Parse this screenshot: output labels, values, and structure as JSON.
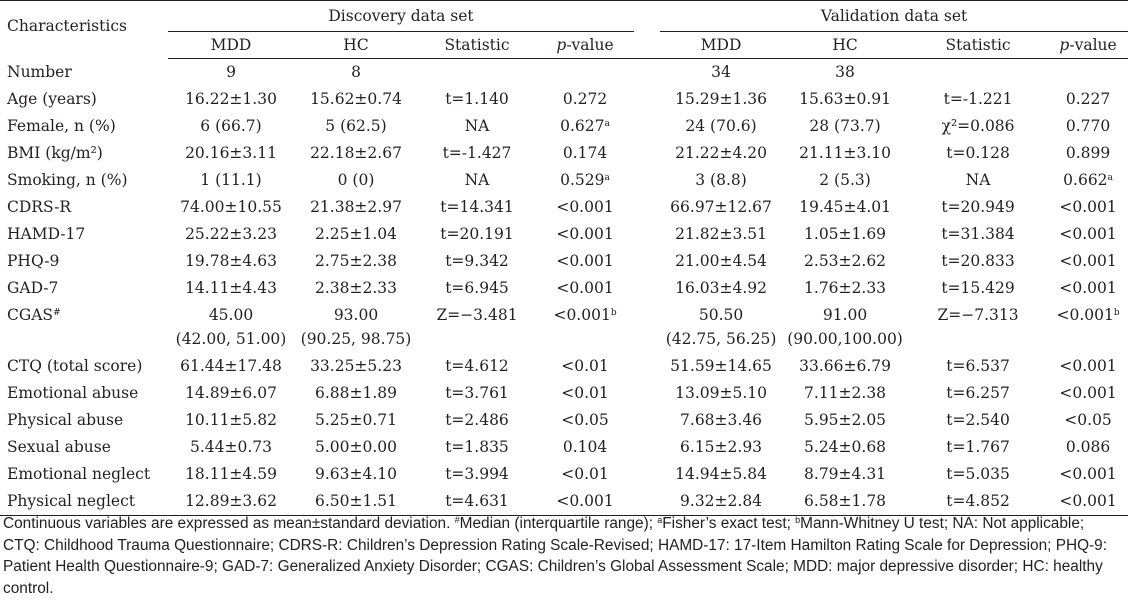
{
  "header": {
    "characteristics_label": "Characteristics",
    "discovery_label": "Discovery data set",
    "validation_label": "Validation data set",
    "columns": [
      "MDD",
      "HC",
      "Statistic",
      "p-value",
      "MDD",
      "HC",
      "Statistic",
      "p-value"
    ]
  },
  "rows": [
    {
      "label": "Number",
      "d_mdd": "9",
      "d_hc": "8",
      "d_stat": "",
      "d_p": "",
      "d_p_sup": "",
      "v_mdd": "34",
      "v_hc": "38",
      "v_stat": "",
      "v_p": "",
      "v_p_sup": ""
    },
    {
      "label": "Age (years)",
      "d_mdd": "16.22±1.30",
      "d_hc": "15.62±0.74",
      "d_stat": "t=1.140",
      "d_p": "0.272",
      "d_p_sup": "",
      "v_mdd": "15.29±1.36",
      "v_hc": "15.63±0.91",
      "v_stat": "t=-1.221",
      "v_p": "0.227",
      "v_p_sup": ""
    },
    {
      "label": "Female, n (%)",
      "d_mdd": "6 (66.7)",
      "d_hc": "5 (62.5)",
      "d_stat": "NA",
      "d_p": "0.627",
      "d_p_sup": "a",
      "v_mdd": "24 (70.6)",
      "v_hc": "28 (73.7)",
      "v_stat": "χ²=0.086",
      "v_p": "0.770",
      "v_p_sup": ""
    },
    {
      "label": "BMI (kg/m²)",
      "d_mdd": "20.16±3.11",
      "d_hc": "22.18±2.67",
      "d_stat": "t=-1.427",
      "d_p": "0.174",
      "d_p_sup": "",
      "v_mdd": "21.22±4.20",
      "v_hc": "21.11±3.10",
      "v_stat": "t=0.128",
      "v_p": "0.899",
      "v_p_sup": ""
    },
    {
      "label": "Smoking, n (%)",
      "d_mdd": "1 (11.1)",
      "d_hc": "0 (0)",
      "d_stat": "NA",
      "d_p": "0.529",
      "d_p_sup": "a",
      "v_mdd": "3 (8.8)",
      "v_hc": "2 (5.3)",
      "v_stat": "NA",
      "v_p": "0.662",
      "v_p_sup": "a"
    },
    {
      "label": "CDRS-R",
      "d_mdd": "74.00±10.55",
      "d_hc": "21.38±2.97",
      "d_stat": "t=14.341",
      "d_p": "<0.001",
      "d_p_sup": "",
      "v_mdd": "66.97±12.67",
      "v_hc": "19.45±4.01",
      "v_stat": "t=20.949",
      "v_p": "<0.001",
      "v_p_sup": ""
    },
    {
      "label": "HAMD-17",
      "d_mdd": "25.22±3.23",
      "d_hc": "2.25±1.04",
      "d_stat": "t=20.191",
      "d_p": "<0.001",
      "d_p_sup": "",
      "v_mdd": "21.82±3.51",
      "v_hc": "1.05±1.69",
      "v_stat": "t=31.384",
      "v_p": "<0.001",
      "v_p_sup": ""
    },
    {
      "label": "PHQ-9",
      "d_mdd": "19.78±4.63",
      "d_hc": "2.75±2.38",
      "d_stat": "t=9.342",
      "d_p": "<0.001",
      "d_p_sup": "",
      "v_mdd": "21.00±4.54",
      "v_hc": "2.53±2.62",
      "v_stat": "t=20.833",
      "v_p": "<0.001",
      "v_p_sup": ""
    },
    {
      "label": "GAD-7",
      "d_mdd": "14.11±4.43",
      "d_hc": "2.38±2.33",
      "d_stat": "t=6.945",
      "d_p": "<0.001",
      "d_p_sup": "",
      "v_mdd": "16.03±4.92",
      "v_hc": "1.76±2.33",
      "v_stat": "t=15.429",
      "v_p": "<0.001",
      "v_p_sup": ""
    },
    {
      "label": "CGAS",
      "label_sup": "#",
      "d_mdd": "45.00",
      "d_mdd2": "(42.00, 51.00)",
      "d_hc": "93.00",
      "d_hc2": "(90.25, 98.75)",
      "d_stat": "Z=−3.481",
      "d_p": "<0.001",
      "d_p_sup": "b",
      "v_mdd": "50.50",
      "v_mdd2": "(42.75, 56.25)",
      "v_hc": "91.00",
      "v_hc2": "(90.00,100.00)",
      "v_stat": "Z=−7.313",
      "v_p": "<0.001",
      "v_p_sup": "b"
    },
    {
      "label": "CTQ (total score)",
      "d_mdd": "61.44±17.48",
      "d_hc": "33.25±5.23",
      "d_stat": "t=4.612",
      "d_p": "<0.01",
      "d_p_sup": "",
      "v_mdd": "51.59±14.65",
      "v_hc": "33.66±6.79",
      "v_stat": "t=6.537",
      "v_p": "<0.001",
      "v_p_sup": ""
    },
    {
      "label": "Emotional abuse",
      "d_mdd": "14.89±6.07",
      "d_hc": "6.88±1.89",
      "d_stat": "t=3.761",
      "d_p": "<0.01",
      "d_p_sup": "",
      "v_mdd": "13.09±5.10",
      "v_hc": "7.11±2.38",
      "v_stat": "t=6.257",
      "v_p": "<0.001",
      "v_p_sup": ""
    },
    {
      "label": "Physical abuse",
      "d_mdd": "10.11±5.82",
      "d_hc": "5.25±0.71",
      "d_stat": "t=2.486",
      "d_p": "<0.05",
      "d_p_sup": "",
      "v_mdd": "7.68±3.46",
      "v_hc": "5.95±2.05",
      "v_stat": "t=2.540",
      "v_p": "<0.05",
      "v_p_sup": ""
    },
    {
      "label": "Sexual abuse",
      "d_mdd": "5.44±0.73",
      "d_hc": "5.00±0.00",
      "d_stat": "t=1.835",
      "d_p": "0.104",
      "d_p_sup": "",
      "v_mdd": "6.15±2.93",
      "v_hc": "5.24±0.68",
      "v_stat": "t=1.767",
      "v_p": "0.086",
      "v_p_sup": ""
    },
    {
      "label": "Emotional neglect",
      "d_mdd": "18.11±4.59",
      "d_hc": "9.63±4.10",
      "d_stat": "t=3.994",
      "d_p": "<0.01",
      "d_p_sup": "",
      "v_mdd": "14.94±5.84",
      "v_hc": "8.79±4.31",
      "v_stat": "t=5.035",
      "v_p": "<0.001",
      "v_p_sup": ""
    },
    {
      "label": "Physical neglect",
      "d_mdd": "12.89±3.62",
      "d_hc": "6.50±1.51",
      "d_stat": "t=4.631",
      "d_p": "<0.001",
      "d_p_sup": "",
      "v_mdd": "9.32±2.84",
      "v_hc": "6.58±1.78",
      "v_stat": "t=4.852",
      "v_p": "<0.001",
      "v_p_sup": ""
    }
  ],
  "footnote": {
    "part1": "Continuous variables are expressed as mean±standard deviation. ",
    "sup_hash": "#",
    "part2": "Median (interquartile range); ",
    "sup_a": "a",
    "part3": "Fisher’s exact test; ",
    "sup_b": "b",
    "part4": "Mann-Whitney U test; NA: Not applicable; CTQ: Childhood Trauma Questionnaire; CDRS-R: Children’s Depression Rating Scale-Revised; HAMD-17: 17-Item Hamilton Rating Scale for Depression; PHQ-9: Patient Health Questionnaire-9; GAD-7: Generalized Anxiety Disorder; CGAS: Children’s Global Assessment Scale; MDD: major depressive disorder; HC: healthy control."
  }
}
